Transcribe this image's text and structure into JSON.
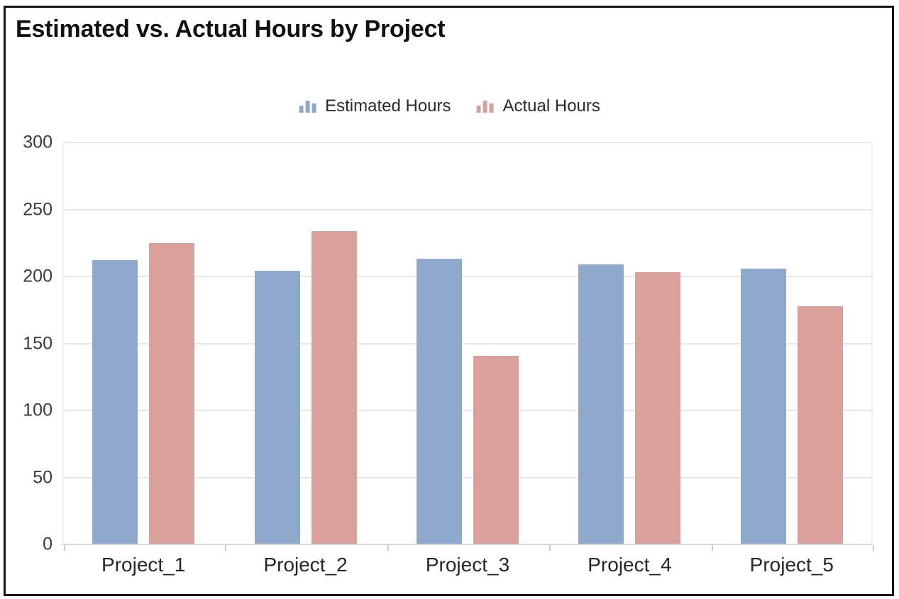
{
  "chart_data": {
    "type": "bar",
    "title": "Estimated vs. Actual Hours by Project",
    "categories": [
      "Project_1",
      "Project_2",
      "Project_3",
      "Project_4",
      "Project_5"
    ],
    "series": [
      {
        "name": "Estimated Hours",
        "color": "#8ea9cc",
        "values": [
          212,
          204,
          213,
          209,
          206
        ]
      },
      {
        "name": "Actual Hours",
        "color": "#d9a09c",
        "values": [
          225,
          234,
          141,
          203,
          178
        ]
      }
    ],
    "xlabel": "",
    "ylabel": "",
    "y_axis": {
      "min": 0,
      "max": 300,
      "ticks": [
        0,
        50,
        100,
        150,
        200,
        250,
        300
      ]
    },
    "grid": true,
    "legend_position": "top-center",
    "legend_icon": "mini-column-chart-icon",
    "colors": {
      "gridline": "#e7e7e7",
      "baseline": "#d6d6d6",
      "frame_border": "#141414",
      "title_text": "#111111",
      "axis_text": "#3a3a3a",
      "background": "#ffffff"
    }
  }
}
